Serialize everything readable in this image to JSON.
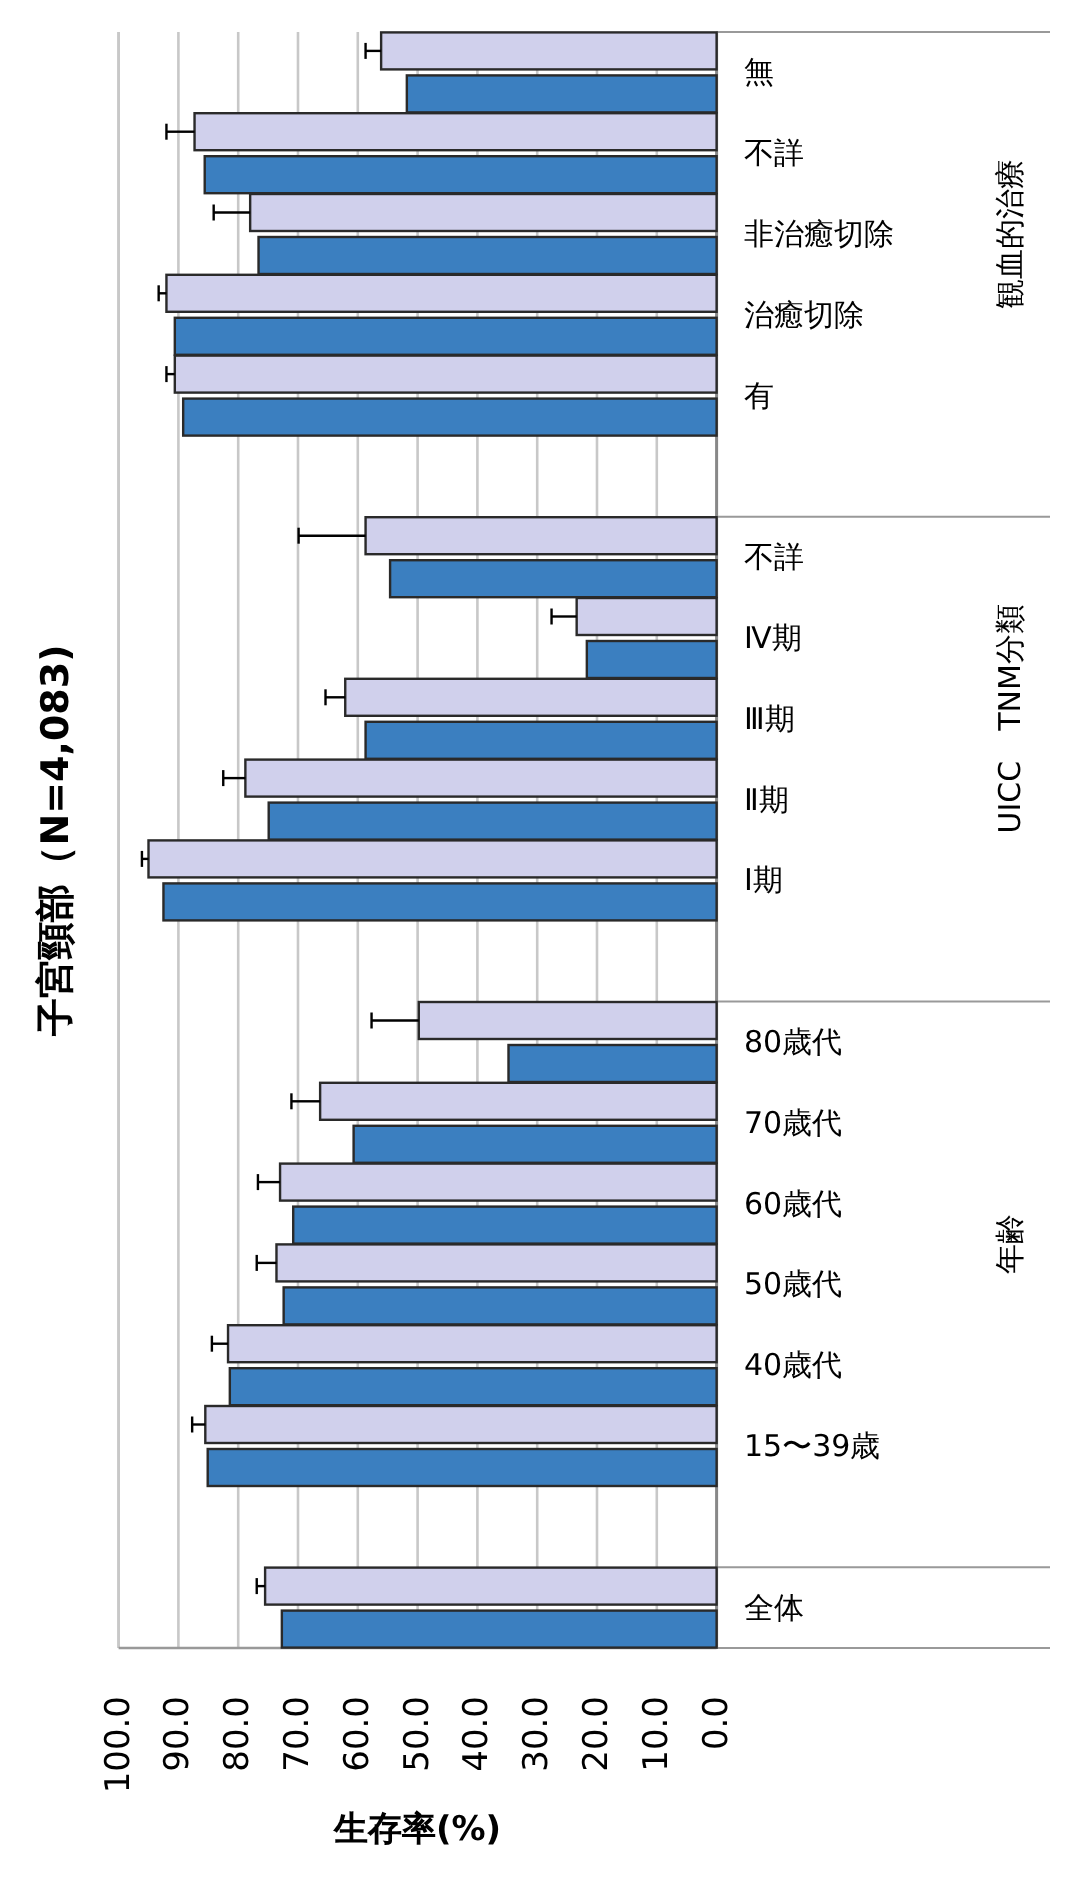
{
  "chart_data": {
    "type": "bar",
    "orientation": "horizontal",
    "title": "子宮頸部（N=4,083)",
    "xlabel": "生存率(%)",
    "categories": [
      "無",
      "不詳",
      "非治癒切除",
      "治癒切除",
      "有",
      null,
      "不詳",
      "Ⅳ期",
      "Ⅲ期",
      "Ⅱ期",
      "Ⅰ期",
      null,
      "80歳代",
      "70歳代",
      "60歳代",
      "50歳代",
      "40歳代",
      "15〜39歳",
      null,
      "全体"
    ],
    "series": [
      {
        "color": "#d0d0ec",
        "values": [
          56.1,
          87.3,
          78.0,
          92.0,
          90.6,
          null,
          58.7,
          23.4,
          62.1,
          78.8,
          95.0,
          null,
          49.8,
          66.3,
          73.0,
          73.6,
          81.7,
          85.5,
          null,
          75.5
        ],
        "errors": [
          [
            56.1,
            58.7
          ],
          [
            87.3,
            92.0
          ],
          [
            78.0,
            84.1
          ],
          [
            92.0,
            93.3
          ],
          [
            90.6,
            92.0
          ],
          null,
          [
            58.7,
            69.9
          ],
          [
            23.4,
            27.6
          ],
          [
            62.1,
            65.4
          ],
          [
            78.8,
            82.5
          ],
          [
            95.0,
            96.1
          ],
          null,
          [
            49.8,
            57.7
          ],
          [
            66.3,
            71.1
          ],
          [
            73.0,
            76.7
          ],
          [
            73.6,
            76.9
          ],
          [
            81.7,
            84.4
          ],
          [
            85.5,
            87.7
          ],
          null,
          [
            75.5,
            76.9
          ]
        ]
      },
      {
        "color": "#3b7fc0",
        "values": [
          51.8,
          85.6,
          76.6,
          90.6,
          89.2,
          null,
          54.6,
          21.7,
          58.7,
          74.9,
          92.5,
          null,
          34.8,
          60.7,
          70.8,
          72.4,
          81.4,
          85.1,
          null,
          72.7
        ]
      }
    ],
    "xlim": [
      100,
      0
    ],
    "xticks": [
      {
        "value": 100,
        "label": "100.0"
      },
      {
        "value": 90,
        "label": "90.0"
      },
      {
        "value": 80,
        "label": "80.0"
      },
      {
        "value": 70,
        "label": "70.0"
      },
      {
        "value": 60,
        "label": "60.0"
      },
      {
        "value": 50,
        "label": "50.0"
      },
      {
        "value": 40,
        "label": "40.0"
      },
      {
        "value": 30,
        "label": "30.0"
      },
      {
        "value": 20,
        "label": "20.0"
      },
      {
        "value": 10,
        "label": "10.0"
      },
      {
        "value": 0,
        "label": "0.0"
      }
    ],
    "grid": "x",
    "annotations": [
      "観血的治療",
      "UICC　TNM分類",
      "年齢"
    ]
  }
}
